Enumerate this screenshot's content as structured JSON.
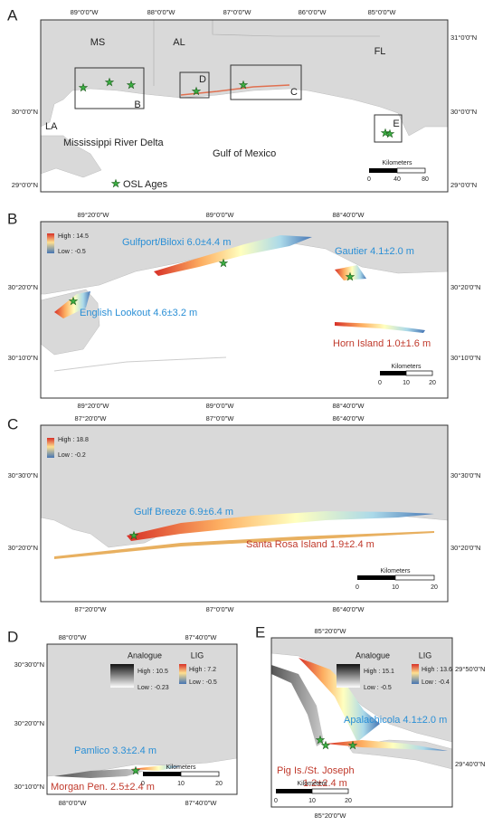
{
  "panels": [
    {
      "label": "A",
      "lon_top": [
        "89°0'0\"W",
        "88°0'0\"W",
        "87°0'0\"W",
        "86°0'0\"W",
        "85°0'0\"W"
      ],
      "lat_right": [
        "31°0'0\"N",
        "30°0'0\"N",
        "29°0'0\"N"
      ],
      "lat_left": [
        "30°0'0\"N",
        "29°0'0\"N"
      ],
      "places": [
        "MS",
        "AL",
        "FL",
        "LA",
        "Mississippi River Delta",
        "Gulf of Mexico"
      ],
      "insets": [
        "B",
        "C",
        "D",
        "E"
      ],
      "legend": "OSL Ages",
      "scalebar": {
        "title": "Kilometers",
        "ticks": [
          0,
          40,
          80
        ]
      }
    },
    {
      "label": "B",
      "lon_top": [
        "89°20'0\"W",
        "89°0'0\"W",
        "88°40'0\"W"
      ],
      "lon_bottom": [
        "89°20'0\"W",
        "89°0'0\"W",
        "88°40'0\"W"
      ],
      "lat_left": [
        "30°20'0\"N",
        "30°10'0\"N"
      ],
      "lat_right": [
        "30°20'0\"N",
        "30°10'0\"N"
      ],
      "range": {
        "high": "High : 14.5",
        "low": "Low : -0.5"
      },
      "sites": [
        "Gulfport/Biloxi 6.0±4.4 m",
        "Gautier 4.1±2.0 m",
        "English Lookout 4.6±3.2 m",
        "Horn Island 1.0±1.6 m"
      ],
      "scalebar": {
        "title": "Kilometers",
        "ticks": [
          0,
          10,
          20
        ]
      }
    },
    {
      "label": "C",
      "lon_top": [
        "87°20'0\"W",
        "87°0'0\"W",
        "86°40'0\"W"
      ],
      "lon_bottom": [
        "87°20'0\"W",
        "87°0'0\"W",
        "86°40'0\"W"
      ],
      "lat_left": [
        "30°30'0\"N",
        "30°20'0\"N"
      ],
      "lat_right": [
        "30°30'0\"N",
        "30°20'0\"N"
      ],
      "range": {
        "high": "High : 18.8",
        "low": "Low : -0.2"
      },
      "sites": [
        "Gulf Breeze 6.9±6.4 m",
        "Santa Rosa Island 1.9±2.4 m"
      ],
      "scalebar": {
        "title": "Kilometers",
        "ticks": [
          0,
          10,
          20
        ]
      }
    },
    {
      "label": "D",
      "lon_top": [
        "88°0'0\"W",
        "87°40'0\"W"
      ],
      "lon_bottom": [
        "88°0'0\"W",
        "87°40'0\"W"
      ],
      "lat_left": [
        "30°30'0\"N",
        "30°20'0\"N",
        "30°10'0\"N"
      ],
      "analogue": {
        "title": "Analogue",
        "high": "High : 10.5",
        "low": "Low : -0.23"
      },
      "lig": {
        "title": "LIG",
        "high": "High : 7.2",
        "low": "Low : -0.5"
      },
      "sites": [
        "Pamlico 3.3±2.4 m",
        "Morgan Pen. 2.5±2.4 m"
      ],
      "scalebar": {
        "title": "Kilometers",
        "ticks": [
          0,
          10,
          20
        ]
      }
    },
    {
      "label": "E",
      "lon_top": [
        "85°20'0\"W"
      ],
      "lon_bottom": [
        "85°20'0\"W"
      ],
      "lat_right": [
        "29°50'0\"N",
        "29°40'0\"N"
      ],
      "analogue": {
        "title": "Analogue",
        "high": "High : 15.1",
        "low": "Low : -0.5"
      },
      "lig": {
        "title": "LIG",
        "high": "High : 13.6",
        "low": "Low : -0.4"
      },
      "sites": [
        "Apalachicola 4.1±2.0 m",
        "Pig Is./St. Joseph",
        "1.2±2.4 m"
      ],
      "scalebar": {
        "title": "Kilometers",
        "ticks": [
          0,
          10,
          20
        ]
      }
    }
  ]
}
